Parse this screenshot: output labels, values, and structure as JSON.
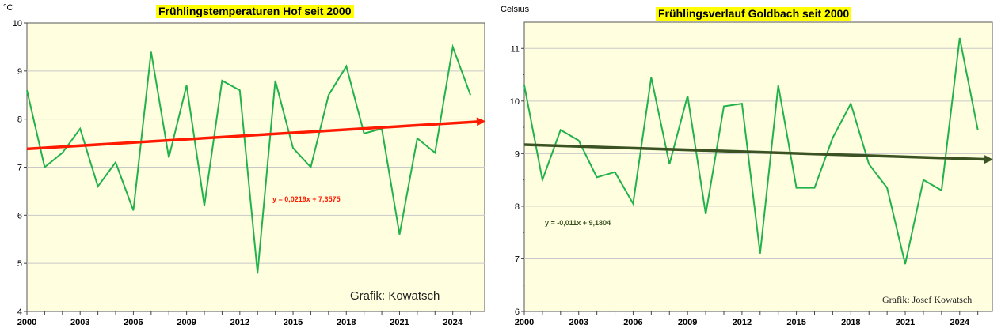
{
  "chart_data": [
    {
      "type": "line",
      "title": "Frühlingstemperaturen Hof seit 2000",
      "ylabel": "°C",
      "xlabel": "",
      "xlim": [
        2000,
        2025.8
      ],
      "ylim": [
        4,
        10
      ],
      "yticks": [
        4,
        5,
        6,
        7,
        8,
        9,
        10
      ],
      "xticks": [
        2000,
        2003,
        2006,
        2009,
        2012,
        2015,
        2018,
        2021,
        2024
      ],
      "grid": "horizontal",
      "background": "#ffffe0",
      "series": [
        {
          "color": "#22b24c",
          "x": [
            2000,
            2001,
            2002,
            2003,
            2004,
            2005,
            2006,
            2007,
            2008,
            2009,
            2010,
            2011,
            2012,
            2013,
            2014,
            2015,
            2016,
            2017,
            2018,
            2019,
            2020,
            2021,
            2022,
            2023,
            2024,
            2025
          ],
          "y": [
            8.6,
            7.0,
            7.3,
            7.8,
            6.6,
            7.1,
            6.1,
            9.4,
            7.2,
            8.7,
            6.2,
            8.8,
            8.6,
            4.8,
            8.8,
            7.4,
            7.0,
            8.5,
            9.1,
            7.7,
            7.8,
            5.6,
            7.6,
            7.3,
            9.5,
            8.5
          ]
        }
      ],
      "trendline": {
        "equation": "y = 0,0219x + 7,3575",
        "color": "#ff1a00",
        "y_start": 7.38,
        "y_end": 7.95,
        "arrow": true
      },
      "annotation": "Grafik: Kowatsch"
    },
    {
      "type": "line",
      "title": "Frühlingsverlauf Goldbach seit 2000",
      "ylabel": "Celsius",
      "xlabel": "",
      "xlim": [
        2000,
        2025.8
      ],
      "ylim": [
        6,
        11.5
      ],
      "yticks": [
        6,
        7,
        8,
        9,
        10,
        11
      ],
      "xticks": [
        2000,
        2003,
        2006,
        2009,
        2012,
        2015,
        2018,
        2021,
        2024
      ],
      "grid": "horizontal",
      "background": "#ffffe0",
      "series": [
        {
          "color": "#22b24c",
          "x": [
            2000,
            2001,
            2002,
            2003,
            2004,
            2005,
            2006,
            2007,
            2008,
            2009,
            2010,
            2011,
            2012,
            2013,
            2014,
            2015,
            2016,
            2017,
            2018,
            2019,
            2020,
            2021,
            2022,
            2023,
            2024,
            2025
          ],
          "y": [
            10.3,
            8.5,
            9.45,
            9.25,
            8.55,
            8.65,
            8.05,
            10.45,
            8.8,
            10.1,
            7.85,
            9.9,
            9.95,
            7.1,
            10.3,
            8.35,
            8.35,
            9.3,
            9.95,
            8.8,
            8.35,
            6.9,
            8.5,
            8.3,
            11.2,
            9.45
          ]
        }
      ],
      "trendline": {
        "equation": "y = -0,011x + 9,1804",
        "color": "#3b5323",
        "y_start": 9.17,
        "y_end": 8.89,
        "arrow": true
      },
      "annotation": "Grafik: Josef Kowatsch"
    }
  ]
}
